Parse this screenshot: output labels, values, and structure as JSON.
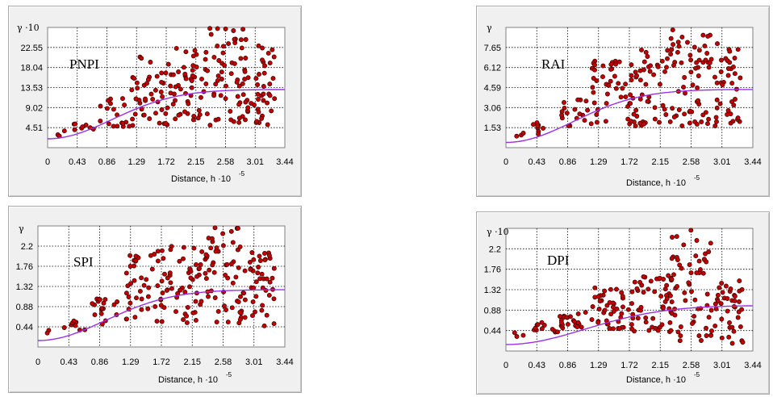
{
  "colors": {
    "point_fill": "#c40000",
    "point_stroke": "#3a0000",
    "model_line": "#9a30e8",
    "grid": "#000000",
    "plot_bg": "#ffffff"
  },
  "chart_data": [
    {
      "id": "pnpi",
      "type": "scatter",
      "label": "PNPI",
      "ylabel": "γ ·10",
      "xlabel_main": "Distance, h ·10",
      "xlabel_exp": "-5",
      "xlim": [
        0,
        3.44
      ],
      "ylim": [
        0,
        27.06
      ],
      "xticks": [
        "0",
        "0.43",
        "0.86",
        "1.29",
        "1.72",
        "2.15",
        "2.58",
        "3.01",
        "3.44"
      ],
      "yticks": [
        "4.51",
        "9.02",
        "13.53",
        "18.04",
        "22.55"
      ],
      "ytick_values": [
        4.51,
        9.02,
        13.53,
        18.04,
        22.55
      ],
      "model_curve": {
        "nugget": 2.0,
        "sill": 13.1,
        "range": 2.3
      },
      "seed": 11,
      "clusters": [
        {
          "x0": 0.1,
          "x1": 0.3,
          "y0": 2.5,
          "y1": 4.0,
          "n": 3
        },
        {
          "x0": 0.35,
          "x1": 0.75,
          "y0": 3.5,
          "y1": 6.0,
          "n": 8
        },
        {
          "x0": 0.75,
          "x1": 1.2,
          "y0": 4.5,
          "y1": 11.5,
          "n": 18
        },
        {
          "x0": 1.2,
          "x1": 1.7,
          "y0": 5.0,
          "y1": 20.5,
          "n": 38
        },
        {
          "x0": 1.7,
          "x1": 2.3,
          "y0": 5.0,
          "y1": 22.5,
          "n": 55
        },
        {
          "x0": 2.3,
          "x1": 2.9,
          "y0": 5.0,
          "y1": 27.0,
          "n": 60
        },
        {
          "x0": 2.9,
          "x1": 3.3,
          "y0": 5.0,
          "y1": 23.0,
          "n": 40
        }
      ]
    },
    {
      "id": "rai",
      "type": "scatter",
      "label": "RAI",
      "ylabel": "γ",
      "xlabel_main": "Distance, h ·10",
      "xlabel_exp": "-5",
      "xlim": [
        0,
        3.44
      ],
      "ylim": [
        0,
        9.18
      ],
      "xticks": [
        "0",
        "0.43",
        "0.86",
        "1.29",
        "1.72",
        "2.15",
        "2.58",
        "3.01",
        "3.44"
      ],
      "yticks": [
        "1.53",
        "3.06",
        "4.59",
        "6.12",
        "7.65"
      ],
      "ytick_values": [
        1.53,
        3.06,
        4.59,
        6.12,
        7.65
      ],
      "model_curve": {
        "nugget": 0.4,
        "sill": 4.45,
        "range": 2.3
      },
      "seed": 23,
      "clusters": [
        {
          "x0": 0.1,
          "x1": 0.3,
          "y0": 0.7,
          "y1": 1.2,
          "n": 3
        },
        {
          "x0": 0.35,
          "x1": 0.75,
          "y0": 1.0,
          "y1": 2.0,
          "n": 8
        },
        {
          "x0": 0.75,
          "x1": 1.2,
          "y0": 1.5,
          "y1": 3.8,
          "n": 18
        },
        {
          "x0": 1.2,
          "x1": 1.7,
          "y0": 1.8,
          "y1": 6.8,
          "n": 38
        },
        {
          "x0": 1.7,
          "x1": 2.3,
          "y0": 1.6,
          "y1": 7.5,
          "n": 55
        },
        {
          "x0": 2.3,
          "x1": 2.9,
          "y0": 1.6,
          "y1": 9.0,
          "n": 60
        },
        {
          "x0": 2.9,
          "x1": 3.3,
          "y0": 1.6,
          "y1": 8.0,
          "n": 40
        }
      ]
    },
    {
      "id": "spi",
      "type": "scatter",
      "label": "SPI",
      "ylabel": "γ",
      "xlabel_main": "Distance, h ·10",
      "xlabel_exp": "-5",
      "xlim": [
        0,
        3.44
      ],
      "ylim": [
        0,
        2.64
      ],
      "xticks": [
        "0",
        "0.43",
        "0.86",
        "1.29",
        "1.72",
        "2.15",
        "2.58",
        "3.01",
        "3.44"
      ],
      "yticks": [
        "0.44",
        "0.88",
        "1.32",
        "1.76",
        "2.2"
      ],
      "ytick_values": [
        0.44,
        0.88,
        1.32,
        1.76,
        2.2
      ],
      "model_curve": {
        "nugget": 0.14,
        "sill": 1.25,
        "range": 2.3
      },
      "seed": 37,
      "clusters": [
        {
          "x0": 0.1,
          "x1": 0.3,
          "y0": 0.3,
          "y1": 0.4,
          "n": 2
        },
        {
          "x0": 0.35,
          "x1": 0.75,
          "y0": 0.35,
          "y1": 0.6,
          "n": 8
        },
        {
          "x0": 0.75,
          "x1": 1.2,
          "y0": 0.5,
          "y1": 1.05,
          "n": 18
        },
        {
          "x0": 1.2,
          "x1": 1.7,
          "y0": 0.5,
          "y1": 2.1,
          "n": 38
        },
        {
          "x0": 1.7,
          "x1": 2.3,
          "y0": 0.5,
          "y1": 2.2,
          "n": 55
        },
        {
          "x0": 2.3,
          "x1": 2.9,
          "y0": 0.5,
          "y1": 2.62,
          "n": 60
        },
        {
          "x0": 2.9,
          "x1": 3.3,
          "y0": 0.45,
          "y1": 2.1,
          "n": 40
        }
      ]
    },
    {
      "id": "dpi",
      "type": "scatter",
      "label": "DPI",
      "ylabel": "γ ·10",
      "xlabel_main": "Distance, h ·10",
      "xlabel_exp": "-5",
      "xlim": [
        0,
        3.44
      ],
      "ylim": [
        0,
        2.64
      ],
      "xticks": [
        "0",
        "0.43",
        "0.86",
        "1.29",
        "1.72",
        "2.15",
        "2.58",
        "3.01",
        "3.44"
      ],
      "yticks": [
        "0.44",
        "0.88",
        "1.32",
        "1.76",
        "2.2"
      ],
      "ytick_values": [
        0.44,
        0.88,
        1.32,
        1.76,
        2.2
      ],
      "model_curve": {
        "nugget": 0.14,
        "sill": 0.98,
        "range": 2.7
      },
      "seed": 53,
      "clusters": [
        {
          "x0": 0.1,
          "x1": 0.3,
          "y0": 0.3,
          "y1": 0.45,
          "n": 3
        },
        {
          "x0": 0.35,
          "x1": 0.75,
          "y0": 0.4,
          "y1": 0.65,
          "n": 12
        },
        {
          "x0": 0.75,
          "x1": 1.2,
          "y0": 0.45,
          "y1": 0.85,
          "n": 22
        },
        {
          "x0": 1.2,
          "x1": 1.7,
          "y0": 0.4,
          "y1": 1.4,
          "n": 40
        },
        {
          "x0": 1.7,
          "x1": 2.3,
          "y0": 0.4,
          "y1": 1.65,
          "n": 55
        },
        {
          "x0": 2.3,
          "x1": 2.9,
          "y0": 0.1,
          "y1": 2.6,
          "n": 60
        },
        {
          "x0": 2.9,
          "x1": 3.3,
          "y0": 0.15,
          "y1": 1.55,
          "n": 40
        }
      ]
    }
  ]
}
